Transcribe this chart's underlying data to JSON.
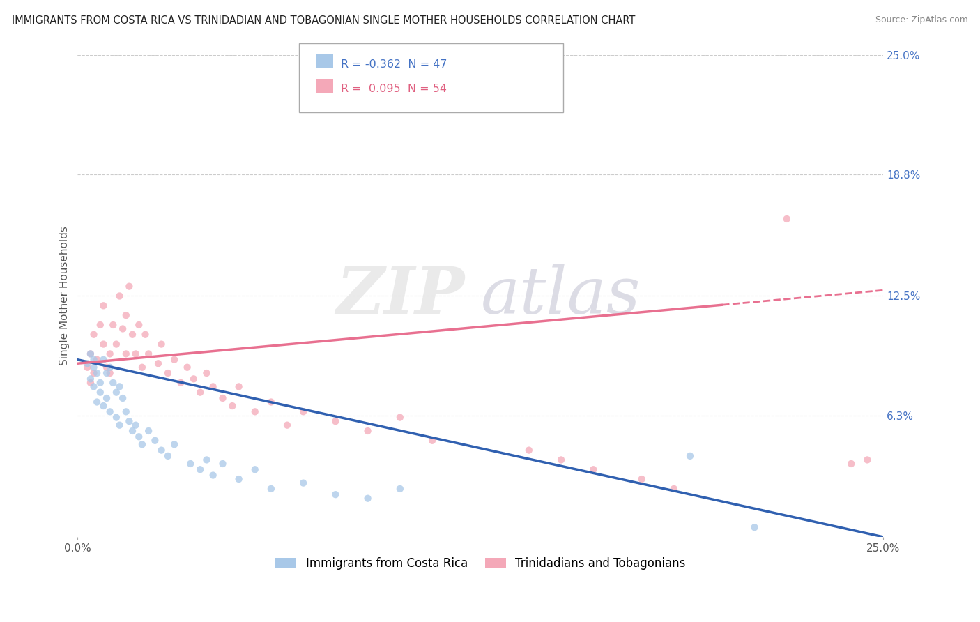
{
  "title": "IMMIGRANTS FROM COSTA RICA VS TRINIDADIAN AND TOBAGONIAN SINGLE MOTHER HOUSEHOLDS CORRELATION CHART",
  "source": "Source: ZipAtlas.com",
  "ylabel": "Single Mother Households",
  "r_blue": -0.362,
  "n_blue": 47,
  "r_pink": 0.095,
  "n_pink": 54,
  "color_blue": "#a8c8e8",
  "color_pink": "#f4a8b8",
  "line_blue": "#3060b0",
  "line_pink": "#e87090",
  "legend_blue": "Immigrants from Costa Rica",
  "legend_pink": "Trinidadians and Tobagonians",
  "xlim": [
    0.0,
    0.25
  ],
  "ylim": [
    0.0,
    0.25
  ],
  "ytick_labels_right": [
    "25.0%",
    "18.8%",
    "12.5%",
    "6.3%"
  ],
  "ytick_vals_right": [
    0.25,
    0.188,
    0.125,
    0.063
  ],
  "blue_scatter_x": [
    0.003,
    0.004,
    0.004,
    0.005,
    0.005,
    0.005,
    0.006,
    0.006,
    0.007,
    0.007,
    0.008,
    0.008,
    0.009,
    0.009,
    0.01,
    0.01,
    0.011,
    0.012,
    0.012,
    0.013,
    0.013,
    0.014,
    0.015,
    0.016,
    0.017,
    0.018,
    0.019,
    0.02,
    0.022,
    0.024,
    0.026,
    0.028,
    0.03,
    0.035,
    0.038,
    0.04,
    0.042,
    0.045,
    0.05,
    0.055,
    0.06,
    0.07,
    0.08,
    0.09,
    0.1,
    0.19,
    0.21
  ],
  "blue_scatter_y": [
    0.09,
    0.082,
    0.095,
    0.088,
    0.078,
    0.092,
    0.085,
    0.07,
    0.08,
    0.075,
    0.092,
    0.068,
    0.085,
    0.072,
    0.088,
    0.065,
    0.08,
    0.075,
    0.062,
    0.078,
    0.058,
    0.072,
    0.065,
    0.06,
    0.055,
    0.058,
    0.052,
    0.048,
    0.055,
    0.05,
    0.045,
    0.042,
    0.048,
    0.038,
    0.035,
    0.04,
    0.032,
    0.038,
    0.03,
    0.035,
    0.025,
    0.028,
    0.022,
    0.02,
    0.025,
    0.042,
    0.005
  ],
  "pink_scatter_x": [
    0.003,
    0.004,
    0.004,
    0.005,
    0.005,
    0.006,
    0.007,
    0.008,
    0.008,
    0.009,
    0.01,
    0.01,
    0.011,
    0.012,
    0.013,
    0.014,
    0.015,
    0.015,
    0.016,
    0.017,
    0.018,
    0.019,
    0.02,
    0.021,
    0.022,
    0.025,
    0.026,
    0.028,
    0.03,
    0.032,
    0.034,
    0.036,
    0.038,
    0.04,
    0.042,
    0.045,
    0.048,
    0.05,
    0.055,
    0.06,
    0.065,
    0.07,
    0.08,
    0.09,
    0.1,
    0.11,
    0.14,
    0.15,
    0.16,
    0.175,
    0.185,
    0.22,
    0.24,
    0.245
  ],
  "pink_scatter_y": [
    0.088,
    0.095,
    0.08,
    0.105,
    0.085,
    0.092,
    0.11,
    0.1,
    0.12,
    0.088,
    0.095,
    0.085,
    0.11,
    0.1,
    0.125,
    0.108,
    0.095,
    0.115,
    0.13,
    0.105,
    0.095,
    0.11,
    0.088,
    0.105,
    0.095,
    0.09,
    0.1,
    0.085,
    0.092,
    0.08,
    0.088,
    0.082,
    0.075,
    0.085,
    0.078,
    0.072,
    0.068,
    0.078,
    0.065,
    0.07,
    0.058,
    0.065,
    0.06,
    0.055,
    0.062,
    0.05,
    0.045,
    0.04,
    0.035,
    0.03,
    0.025,
    0.165,
    0.038,
    0.04
  ],
  "blue_line_x": [
    0.0,
    0.25
  ],
  "blue_line_y": [
    0.092,
    0.0
  ],
  "pink_line_x": [
    0.0,
    0.25
  ],
  "pink_line_y": [
    0.09,
    0.128
  ]
}
